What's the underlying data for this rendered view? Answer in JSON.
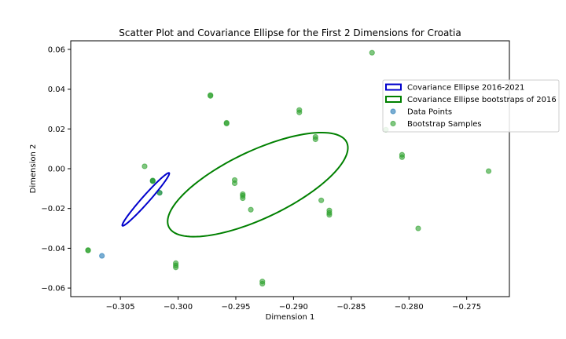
{
  "chart_data": {
    "type": "scatter",
    "title": "Scatter Plot and Covariance Ellipse for the First 2 Dimensions for Croatia",
    "xlabel": "Dimension 1",
    "ylabel": "Dimension 2",
    "xlim": [
      -0.3093,
      -0.2713
    ],
    "ylim": [
      -0.0643,
      0.0643
    ],
    "xticks": [
      -0.305,
      -0.3,
      -0.295,
      -0.29,
      -0.285,
      -0.28,
      -0.275
    ],
    "xtick_labels": [
      "−0.305",
      "−0.300",
      "−0.295",
      "−0.290",
      "−0.285",
      "−0.280",
      "−0.275"
    ],
    "yticks": [
      -0.06,
      -0.04,
      -0.02,
      0.0,
      0.02,
      0.04,
      0.06
    ],
    "ytick_labels": [
      "−0.06",
      "−0.04",
      "−0.02",
      "0.00",
      "0.02",
      "0.04",
      "0.06"
    ],
    "grid": false,
    "legend_position": "right",
    "legend": [
      {
        "label": "Covariance Ellipse 2016-2021",
        "kind": "ellipse",
        "color": "#0000cc"
      },
      {
        "label": "Covariance Ellipse bootstraps of 2016",
        "kind": "ellipse",
        "color": "#008000"
      },
      {
        "label": "Data Points",
        "kind": "marker",
        "color": "#1f77b4"
      },
      {
        "label": "Bootstrap Samples",
        "kind": "marker",
        "color": "#2ca02c"
      }
    ],
    "series": [
      {
        "name": "Data Points",
        "color": "#1f77b4",
        "points": [
          [
            -0.3016,
            -0.0121
          ],
          [
            -0.3022,
            -0.0061
          ],
          [
            -0.3066,
            -0.0438
          ]
        ]
      },
      {
        "name": "Bootstrap Samples",
        "color": "#2ca02c",
        "points": [
          [
            -0.3078,
            -0.0409
          ],
          [
            -0.3078,
            -0.0411
          ],
          [
            -0.3029,
            0.0012
          ],
          [
            -0.3022,
            -0.0059
          ],
          [
            -0.3022,
            -0.0063
          ],
          [
            -0.3016,
            -0.0121
          ],
          [
            -0.3002,
            -0.0475
          ],
          [
            -0.3002,
            -0.0486
          ],
          [
            -0.3002,
            -0.0496
          ],
          [
            -0.2972,
            0.037
          ],
          [
            -0.2972,
            0.0366
          ],
          [
            -0.2958,
            0.0231
          ],
          [
            -0.2958,
            0.0227
          ],
          [
            -0.2951,
            -0.0057
          ],
          [
            -0.2951,
            -0.0073
          ],
          [
            -0.2944,
            -0.0128
          ],
          [
            -0.2944,
            -0.0136
          ],
          [
            -0.2944,
            -0.0148
          ],
          [
            -0.2937,
            -0.0206
          ],
          [
            -0.2927,
            -0.0567
          ],
          [
            -0.2927,
            -0.0578
          ],
          [
            -0.2895,
            0.0295
          ],
          [
            -0.2895,
            0.0283
          ],
          [
            -0.2881,
            0.016
          ],
          [
            -0.2881,
            0.0148
          ],
          [
            -0.2876,
            -0.0159
          ],
          [
            -0.2869,
            -0.021
          ],
          [
            -0.2869,
            -0.0222
          ],
          [
            -0.2869,
            -0.0232
          ],
          [
            -0.2832,
            0.0583
          ],
          [
            -0.282,
            0.0196
          ],
          [
            -0.2806,
            0.007
          ],
          [
            -0.2806,
            0.0058
          ],
          [
            -0.2792,
            -0.03
          ],
          [
            -0.2731,
            -0.0012
          ]
        ]
      }
    ],
    "ellipses": [
      {
        "name": "Covariance Ellipse 2016-2021",
        "color": "#0000cc",
        "center": [
          -0.3028,
          -0.0154
        ],
        "half_axis_1": [
          0.002,
          0.0133
        ],
        "half_axis_2": [
          -0.00039,
          0.00018
        ]
      },
      {
        "name": "Covariance Ellipse bootstraps of 2016",
        "color": "#008000",
        "center": [
          -0.2931,
          -0.008
        ],
        "half_axis_1": [
          0.007,
          0.0248
        ],
        "half_axis_2": [
          -0.00346,
          0.00835
        ]
      }
    ]
  }
}
